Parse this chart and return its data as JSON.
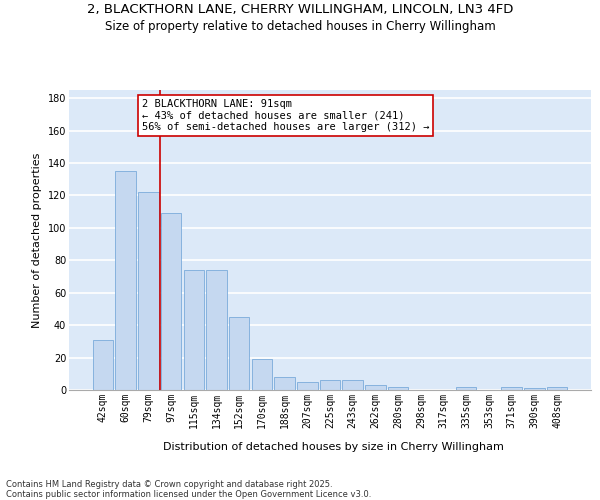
{
  "title_line1": "2, BLACKTHORN LANE, CHERRY WILLINGHAM, LINCOLN, LN3 4FD",
  "title_line2": "Size of property relative to detached houses in Cherry Willingham",
  "xlabel": "Distribution of detached houses by size in Cherry Willingham",
  "ylabel": "Number of detached properties",
  "categories": [
    "42sqm",
    "60sqm",
    "79sqm",
    "97sqm",
    "115sqm",
    "134sqm",
    "152sqm",
    "170sqm",
    "188sqm",
    "207sqm",
    "225sqm",
    "243sqm",
    "262sqm",
    "280sqm",
    "298sqm",
    "317sqm",
    "335sqm",
    "353sqm",
    "371sqm",
    "390sqm",
    "408sqm"
  ],
  "values": [
    31,
    135,
    122,
    109,
    74,
    74,
    45,
    19,
    8,
    5,
    6,
    6,
    3,
    2,
    0,
    0,
    2,
    0,
    2,
    1,
    2
  ],
  "bar_color": "#c5d8f0",
  "bar_edge_color": "#7aabdb",
  "vline_x": 2.5,
  "vline_color": "#cc0000",
  "annotation_text": "2 BLACKTHORN LANE: 91sqm\n← 43% of detached houses are smaller (241)\n56% of semi-detached houses are larger (312) →",
  "annotation_box_color": "#ffffff",
  "annotation_box_edge_color": "#cc0000",
  "ylim": [
    0,
    185
  ],
  "yticks": [
    0,
    20,
    40,
    60,
    80,
    100,
    120,
    140,
    160,
    180
  ],
  "background_color": "#dce9f8",
  "grid_color": "#ffffff",
  "footnote": "Contains HM Land Registry data © Crown copyright and database right 2025.\nContains public sector information licensed under the Open Government Licence v3.0.",
  "title_fontsize": 9.5,
  "subtitle_fontsize": 8.5,
  "tick_fontsize": 7,
  "ylabel_fontsize": 8,
  "xlabel_fontsize": 8,
  "annotation_fontsize": 7.5,
  "footnote_fontsize": 6
}
